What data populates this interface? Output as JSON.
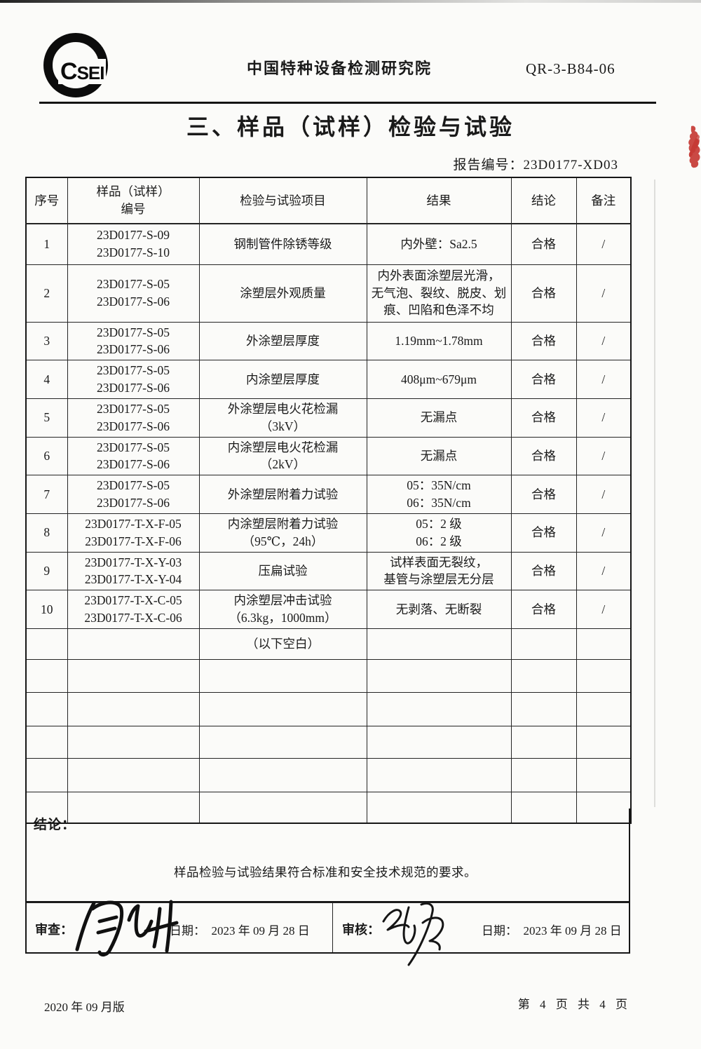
{
  "header": {
    "logo_text": "CSEI",
    "org_name": "中国特种设备检测研究院",
    "form_code": "QR-3-B84-06"
  },
  "title": "三、样品（试样）检验与试验",
  "report_number": {
    "label": "报告编号：",
    "value": "23D0177-XD03"
  },
  "table": {
    "headers": [
      "序号",
      "样品（试样）\n编号",
      "检验与试验项目",
      "结果",
      "结论",
      "备注"
    ],
    "rows": [
      {
        "no": "1",
        "sample": [
          "23D0177-S-09",
          "23D0177-S-10"
        ],
        "item": [
          "钢制管件除锈等级"
        ],
        "result": [
          "内外壁：Sa2.5"
        ],
        "conclusion": "合格",
        "remark": "/"
      },
      {
        "no": "2",
        "sample": [
          "23D0177-S-05",
          "23D0177-S-06"
        ],
        "item": [
          "涂塑层外观质量"
        ],
        "result": [
          "内外表面涂塑层光滑，",
          "无气泡、裂纹、脱皮、划",
          "痕、凹陷和色泽不均"
        ],
        "conclusion": "合格",
        "remark": "/"
      },
      {
        "no": "3",
        "sample": [
          "23D0177-S-05",
          "23D0177-S-06"
        ],
        "item": [
          "外涂塑层厚度"
        ],
        "result": [
          "1.19mm~1.78mm"
        ],
        "conclusion": "合格",
        "remark": "/"
      },
      {
        "no": "4",
        "sample": [
          "23D0177-S-05",
          "23D0177-S-06"
        ],
        "item": [
          "内涂塑层厚度"
        ],
        "result": [
          "408μm~679μm"
        ],
        "conclusion": "合格",
        "remark": "/"
      },
      {
        "no": "5",
        "sample": [
          "23D0177-S-05",
          "23D0177-S-06"
        ],
        "item": [
          "外涂塑层电火花检漏",
          "（3kV）"
        ],
        "result": [
          "无漏点"
        ],
        "conclusion": "合格",
        "remark": "/"
      },
      {
        "no": "6",
        "sample": [
          "23D0177-S-05",
          "23D0177-S-06"
        ],
        "item": [
          "内涂塑层电火花检漏",
          "（2kV）"
        ],
        "result": [
          "无漏点"
        ],
        "conclusion": "合格",
        "remark": "/"
      },
      {
        "no": "7",
        "sample": [
          "23D0177-S-05",
          "23D0177-S-06"
        ],
        "item": [
          "外涂塑层附着力试验"
        ],
        "result": [
          "05：35N/cm",
          "06：35N/cm"
        ],
        "conclusion": "合格",
        "remark": "/"
      },
      {
        "no": "8",
        "sample": [
          "23D0177-T-X-F-05",
          "23D0177-T-X-F-06"
        ],
        "item": [
          "内涂塑层附着力试验",
          "（95℃，24h）"
        ],
        "result": [
          "05：2 级",
          "06：2 级"
        ],
        "conclusion": "合格",
        "remark": "/"
      },
      {
        "no": "9",
        "sample": [
          "23D0177-T-X-Y-03",
          "23D0177-T-X-Y-04"
        ],
        "item": [
          "压扁试验"
        ],
        "result": [
          "试样表面无裂纹，",
          "基管与涂塑层无分层"
        ],
        "conclusion": "合格",
        "remark": "/"
      },
      {
        "no": "10",
        "sample": [
          "23D0177-T-X-C-05",
          "23D0177-T-X-C-06"
        ],
        "item": [
          "内涂塑层冲击试验",
          "（6.3kg，1000mm）"
        ],
        "result": [
          "无剥落、无断裂"
        ],
        "conclusion": "合格",
        "remark": "/"
      }
    ],
    "blank_note": "（以下空白）",
    "empty_row_count": 5
  },
  "conclusion": {
    "label": "结论：",
    "text": "样品检验与试验结果符合标准和安全技术规范的要求。"
  },
  "signature_row": {
    "review_label": "审查：",
    "review_signature_name": "周少坤",
    "review_date_label": "日期：",
    "review_date": "2023 年 09 月 28 日",
    "audit_label": "审核：",
    "audit_date_label": "日期：",
    "audit_date": "2023 年 09 月 28 日"
  },
  "footer": {
    "version": "2020 年 09 月版",
    "page_info": "第 4 页 共 4 页"
  },
  "colors": {
    "ink": "#1a1a1a",
    "stamp_red": "#c43530",
    "paper": "#fbfbf9"
  }
}
